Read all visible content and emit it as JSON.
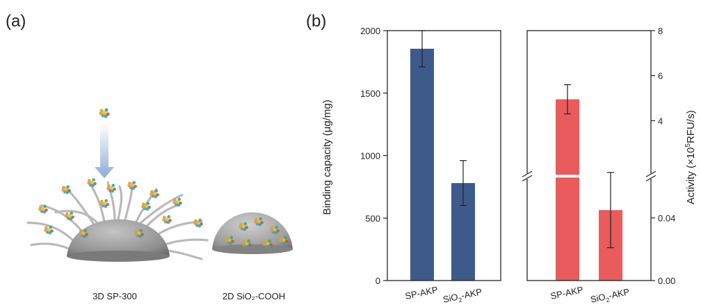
{
  "panels": {
    "a": {
      "label": "(a)",
      "items": [
        {
          "caption": "3D SP-300"
        },
        {
          "caption": "2D SiO₂-COOH"
        }
      ]
    },
    "b": {
      "label": "(b)"
    }
  },
  "colors": {
    "blue_bar": "#3d5a8a",
    "red_bar": "#e95b5c",
    "frame": "#222222",
    "particle": "#8e8e8e",
    "fiber": "#b9b9b9",
    "arrow": "#9db5dc"
  },
  "chart_data": [
    {
      "type": "bar",
      "categories": [
        "SP-AKP",
        "SiO2-AKP"
      ],
      "category_labels": [
        {
          "main": "SP-AKP",
          "sub": ""
        },
        {
          "main": "SiO",
          "sub": "2",
          "rest": "-AKP"
        }
      ],
      "values": [
        1855,
        780
      ],
      "errors": [
        145,
        180
      ],
      "ylabel": "Binding capacity (μg/mg)",
      "ylim": [
        0,
        2000
      ],
      "yticks": [
        0,
        500,
        1000,
        1500,
        2000
      ],
      "bar_color": "#3d5a8a"
    },
    {
      "type": "bar",
      "categories": [
        "SP-AKP",
        "SiO2-AKP"
      ],
      "category_labels": [
        {
          "main": "SP-AKP",
          "sub": ""
        },
        {
          "main": "SiO",
          "sub": "2",
          "rest": "-AKP"
        }
      ],
      "broken_axis": true,
      "segments": [
        {
          "ylim": [
            0,
            0.06
          ],
          "yticks": [
            "0.00",
            "0.04"
          ]
        },
        {
          "ylim": [
            2,
            8
          ],
          "yticks": [
            "4",
            "6",
            "8"
          ]
        }
      ],
      "values": [
        4.95,
        0.045
      ],
      "errors": [
        0.65,
        0.024
      ],
      "ylabel": {
        "pre": "Activity (×10",
        "sup": "5",
        "post": "RFU/s)"
      },
      "bar_color": "#e95b5c"
    }
  ]
}
